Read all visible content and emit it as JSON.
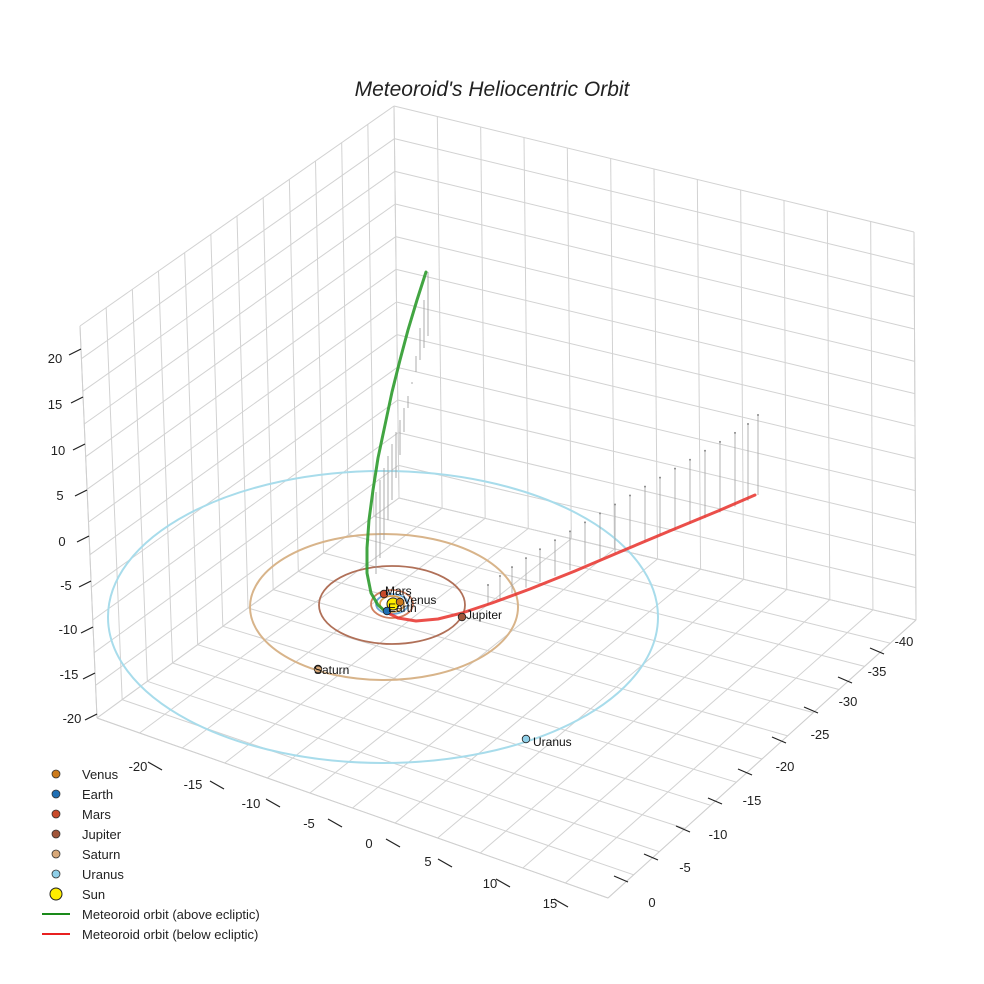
{
  "chart_data": {
    "type": "3d-line",
    "title": "Meteoroid's Heliocentric Orbit",
    "x_axis": {
      "ticks": [
        "-20",
        "-15",
        "-10",
        "-5",
        "0",
        "5",
        "10",
        "15"
      ],
      "range": [
        -22,
        18
      ]
    },
    "y_axis": {
      "ticks": [
        "0",
        "-5",
        "-10",
        "-15",
        "-20",
        "-25",
        "-30",
        "-35",
        "-40"
      ],
      "range": [
        -42,
        2
      ]
    },
    "z_axis": {
      "ticks": [
        "20",
        "15",
        "10",
        "5",
        "0",
        "-5",
        "-10",
        "-15",
        "-20"
      ],
      "range": [
        -21,
        22
      ]
    },
    "planets": [
      {
        "name": "Venus",
        "label": "Venus",
        "color": "#cc7a1a",
        "orbit_radius": 0.72
      },
      {
        "name": "Earth",
        "label": "Earth",
        "color": "#1f6fb4",
        "orbit_radius": 1.0
      },
      {
        "name": "Mars",
        "label": "Mars",
        "color": "#c84a2a",
        "orbit_radius": 1.52
      },
      {
        "name": "Jupiter",
        "label": "Jupiter",
        "color": "#a0553a",
        "orbit_radius": 5.2
      },
      {
        "name": "Saturn",
        "label": "Saturn",
        "color": "#d8a878",
        "orbit_radius": 9.5
      },
      {
        "name": "Uranus",
        "label": "Uranus",
        "color": "#8fcfe8",
        "orbit_radius": 19.2
      }
    ],
    "sun": {
      "name": "Sun",
      "color": "#ffee00"
    },
    "meteoroid": {
      "above": {
        "name": "Meteoroid orbit (above ecliptic)",
        "color": "#2e9b2e"
      },
      "below": {
        "name": "Meteoroid orbit (below ecliptic)",
        "color": "#e8302a"
      }
    },
    "legend": [
      {
        "label": "Venus",
        "kind": "marker",
        "color": "#cc7a1a"
      },
      {
        "label": "Earth",
        "kind": "marker",
        "color": "#1f6fb4"
      },
      {
        "label": "Mars",
        "kind": "marker",
        "color": "#c84a2a"
      },
      {
        "label": "Jupiter",
        "kind": "marker",
        "color": "#a0553a"
      },
      {
        "label": "Saturn",
        "kind": "marker",
        "color": "#d8a878"
      },
      {
        "label": "Uranus",
        "kind": "marker",
        "color": "#8fcfe8"
      },
      {
        "label": "Sun",
        "kind": "sun",
        "color": "#ffee00"
      },
      {
        "label": "Meteoroid orbit (above ecliptic)",
        "kind": "line",
        "color": "#1a8a1a"
      },
      {
        "label": "Meteoroid orbit (below ecliptic)",
        "kind": "line",
        "color": "#e82020"
      }
    ]
  }
}
